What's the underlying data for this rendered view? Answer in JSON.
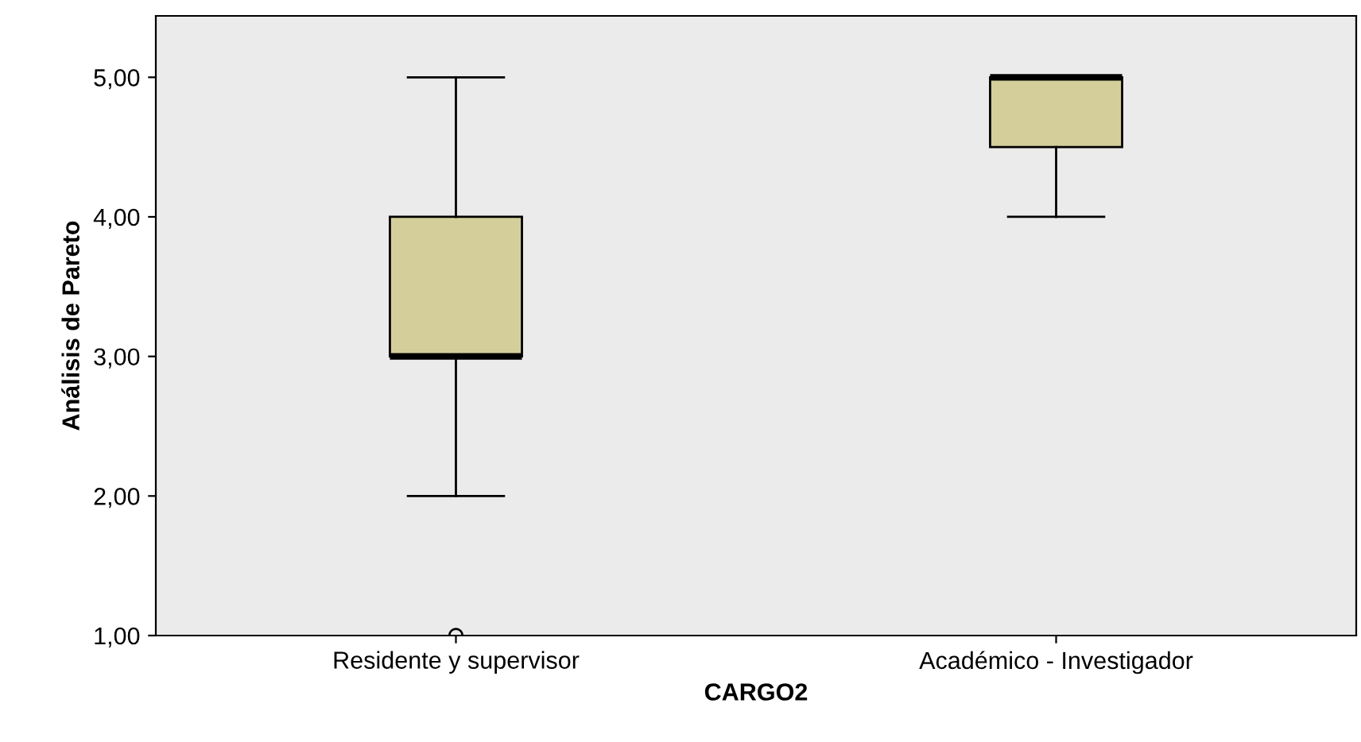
{
  "chart_data": {
    "type": "box",
    "xlabel": "CARGO2",
    "ylabel": "Análisis de Pareto",
    "categories": [
      "Residente y supervisor",
      "Académico - Investigador"
    ],
    "boxes": [
      {
        "low": 2,
        "q1": 3,
        "median": 3,
        "q3": 4,
        "high": 5,
        "outliers": [
          1
        ]
      },
      {
        "low": 4,
        "q1": 4.5,
        "median": 5,
        "q3": 5,
        "high": 5
      }
    ],
    "color": "#d4ce9b",
    "ylim": [
      1,
      5.44
    ],
    "yticks": [
      {
        "value": 1,
        "label": "1,00"
      },
      {
        "value": 2,
        "label": "2,00"
      },
      {
        "value": 3,
        "label": "3,00"
      },
      {
        "value": 4,
        "label": "4,00"
      },
      {
        "value": 5,
        "label": "5,00"
      }
    ],
    "grid": false,
    "legend": false
  }
}
